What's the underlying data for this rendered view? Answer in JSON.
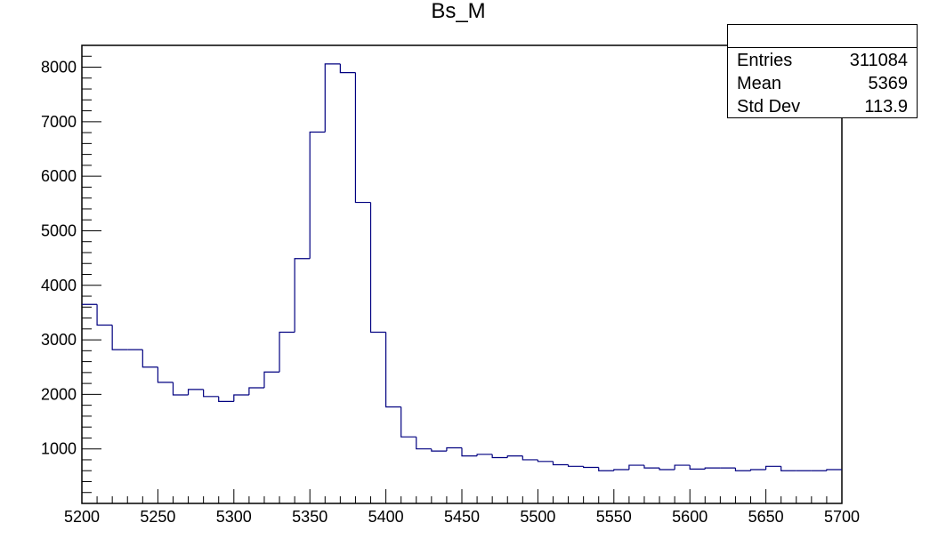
{
  "chart_data": {
    "type": "histogram",
    "title": "Bs_M",
    "xlabel": "",
    "ylabel": "",
    "xlim": [
      5200,
      5700
    ],
    "ylim": [
      0,
      8400
    ],
    "bin_width": 10,
    "bin_edges_start": 5200,
    "values": [
      3650,
      3270,
      2820,
      2820,
      2500,
      2220,
      1990,
      2090,
      1960,
      1870,
      1990,
      2120,
      2410,
      3140,
      4490,
      6810,
      8060,
      7900,
      5520,
      3140,
      1770,
      1220,
      1000,
      960,
      1020,
      870,
      900,
      840,
      870,
      800,
      770,
      710,
      680,
      660,
      600,
      620,
      700,
      650,
      620,
      700,
      630,
      650,
      650,
      600,
      620,
      680,
      600,
      600,
      600,
      620
    ],
    "x_ticks": [
      "5200",
      "5250",
      "5300",
      "5350",
      "5400",
      "5450",
      "5500",
      "5550",
      "5600",
      "5650",
      "5700"
    ],
    "y_ticks": [
      "1000",
      "2000",
      "3000",
      "4000",
      "5000",
      "6000",
      "7000",
      "8000"
    ],
    "line_color": "#000080",
    "stats": {
      "header": "",
      "rows": [
        {
          "label": "Entries",
          "value": "311084"
        },
        {
          "label": "Mean",
          "value": "5369"
        },
        {
          "label": "Std Dev",
          "value": "113.9"
        }
      ]
    }
  }
}
